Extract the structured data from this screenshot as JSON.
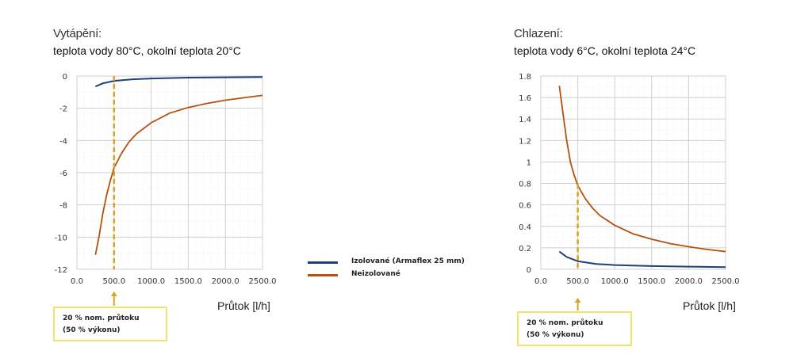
{
  "chart_data": [
    {
      "type": "line",
      "title": "Vytápění:",
      "subtitle": "teplota vody 80°C, okolní teplota 20°C",
      "xlabel": "Průtok [l/h]",
      "ylabel": "",
      "xlim": [
        0,
        2500
      ],
      "ylim": [
        -12,
        0
      ],
      "xticks": [
        "0.0",
        "500.0",
        "1000.0",
        "1500.0",
        "2000.0",
        "2500.0"
      ],
      "yticks": [
        "0",
        "-2",
        "-4",
        "-6",
        "-8",
        "-10",
        "-12"
      ],
      "grid": true,
      "marker_x": 500,
      "series": [
        {
          "name": "Izolované (Armaflex 25 mm)",
          "color": "#1f3f7a",
          "x": [
            250,
            350,
            500,
            750,
            1000,
            1500,
            2000,
            2500
          ],
          "y": [
            -0.65,
            -0.45,
            -0.3,
            -0.2,
            -0.15,
            -0.1,
            -0.08,
            -0.06
          ]
        },
        {
          "name": "Neizolované",
          "color": "#b5510d",
          "x": [
            250,
            300,
            350,
            400,
            450,
            500,
            600,
            700,
            800,
            1000,
            1250,
            1500,
            1750,
            2000,
            2250,
            2500
          ],
          "y": [
            -11.1,
            -9.9,
            -8.5,
            -7.4,
            -6.5,
            -5.7,
            -4.8,
            -4.1,
            -3.6,
            -2.9,
            -2.3,
            -1.95,
            -1.7,
            -1.5,
            -1.35,
            -1.2
          ]
        }
      ]
    },
    {
      "type": "line",
      "title": "Chlazení:",
      "subtitle": "teplota vody 6°C, okolní teplota 24°C",
      "xlabel": "Průtok [l/h]",
      "ylabel": "",
      "xlim": [
        0,
        2500
      ],
      "ylim": [
        0,
        1.8
      ],
      "xticks": [
        "0.0",
        "500.0",
        "1000.0",
        "1500.0",
        "2000.0",
        "2500.0"
      ],
      "yticks": [
        "1.8",
        "1.6",
        "1.4",
        "1.2",
        "1",
        "0.8",
        "0.6",
        "0.4",
        "0.2",
        "0"
      ],
      "grid": true,
      "marker_x": 500,
      "series": [
        {
          "name": "Izolované (Armaflex 25 mm)",
          "color": "#1f3f7a",
          "x": [
            250,
            350,
            500,
            750,
            1000,
            1500,
            2000,
            2500
          ],
          "y": [
            0.165,
            0.115,
            0.075,
            0.05,
            0.04,
            0.03,
            0.025,
            0.02
          ]
        },
        {
          "name": "Neizolované",
          "color": "#b5510d",
          "x": [
            250,
            300,
            350,
            400,
            450,
            500,
            600,
            700,
            800,
            1000,
            1250,
            1500,
            1750,
            2000,
            2250,
            2500
          ],
          "y": [
            1.71,
            1.45,
            1.2,
            1.0,
            0.88,
            0.78,
            0.66,
            0.57,
            0.5,
            0.41,
            0.33,
            0.28,
            0.24,
            0.21,
            0.185,
            0.165
          ]
        }
      ]
    }
  ],
  "legend": [
    {
      "label": "Izolované (Armaflex 25 mm)",
      "color": "#1f3f7a"
    },
    {
      "label": "Neizolované",
      "color": "#b5510d"
    }
  ],
  "callout": {
    "line1": "20 % nom. průtoku",
    "line2": "(50 % výkonu)"
  },
  "marker_color": "#d9a520",
  "arrow_color": "#d9a520"
}
